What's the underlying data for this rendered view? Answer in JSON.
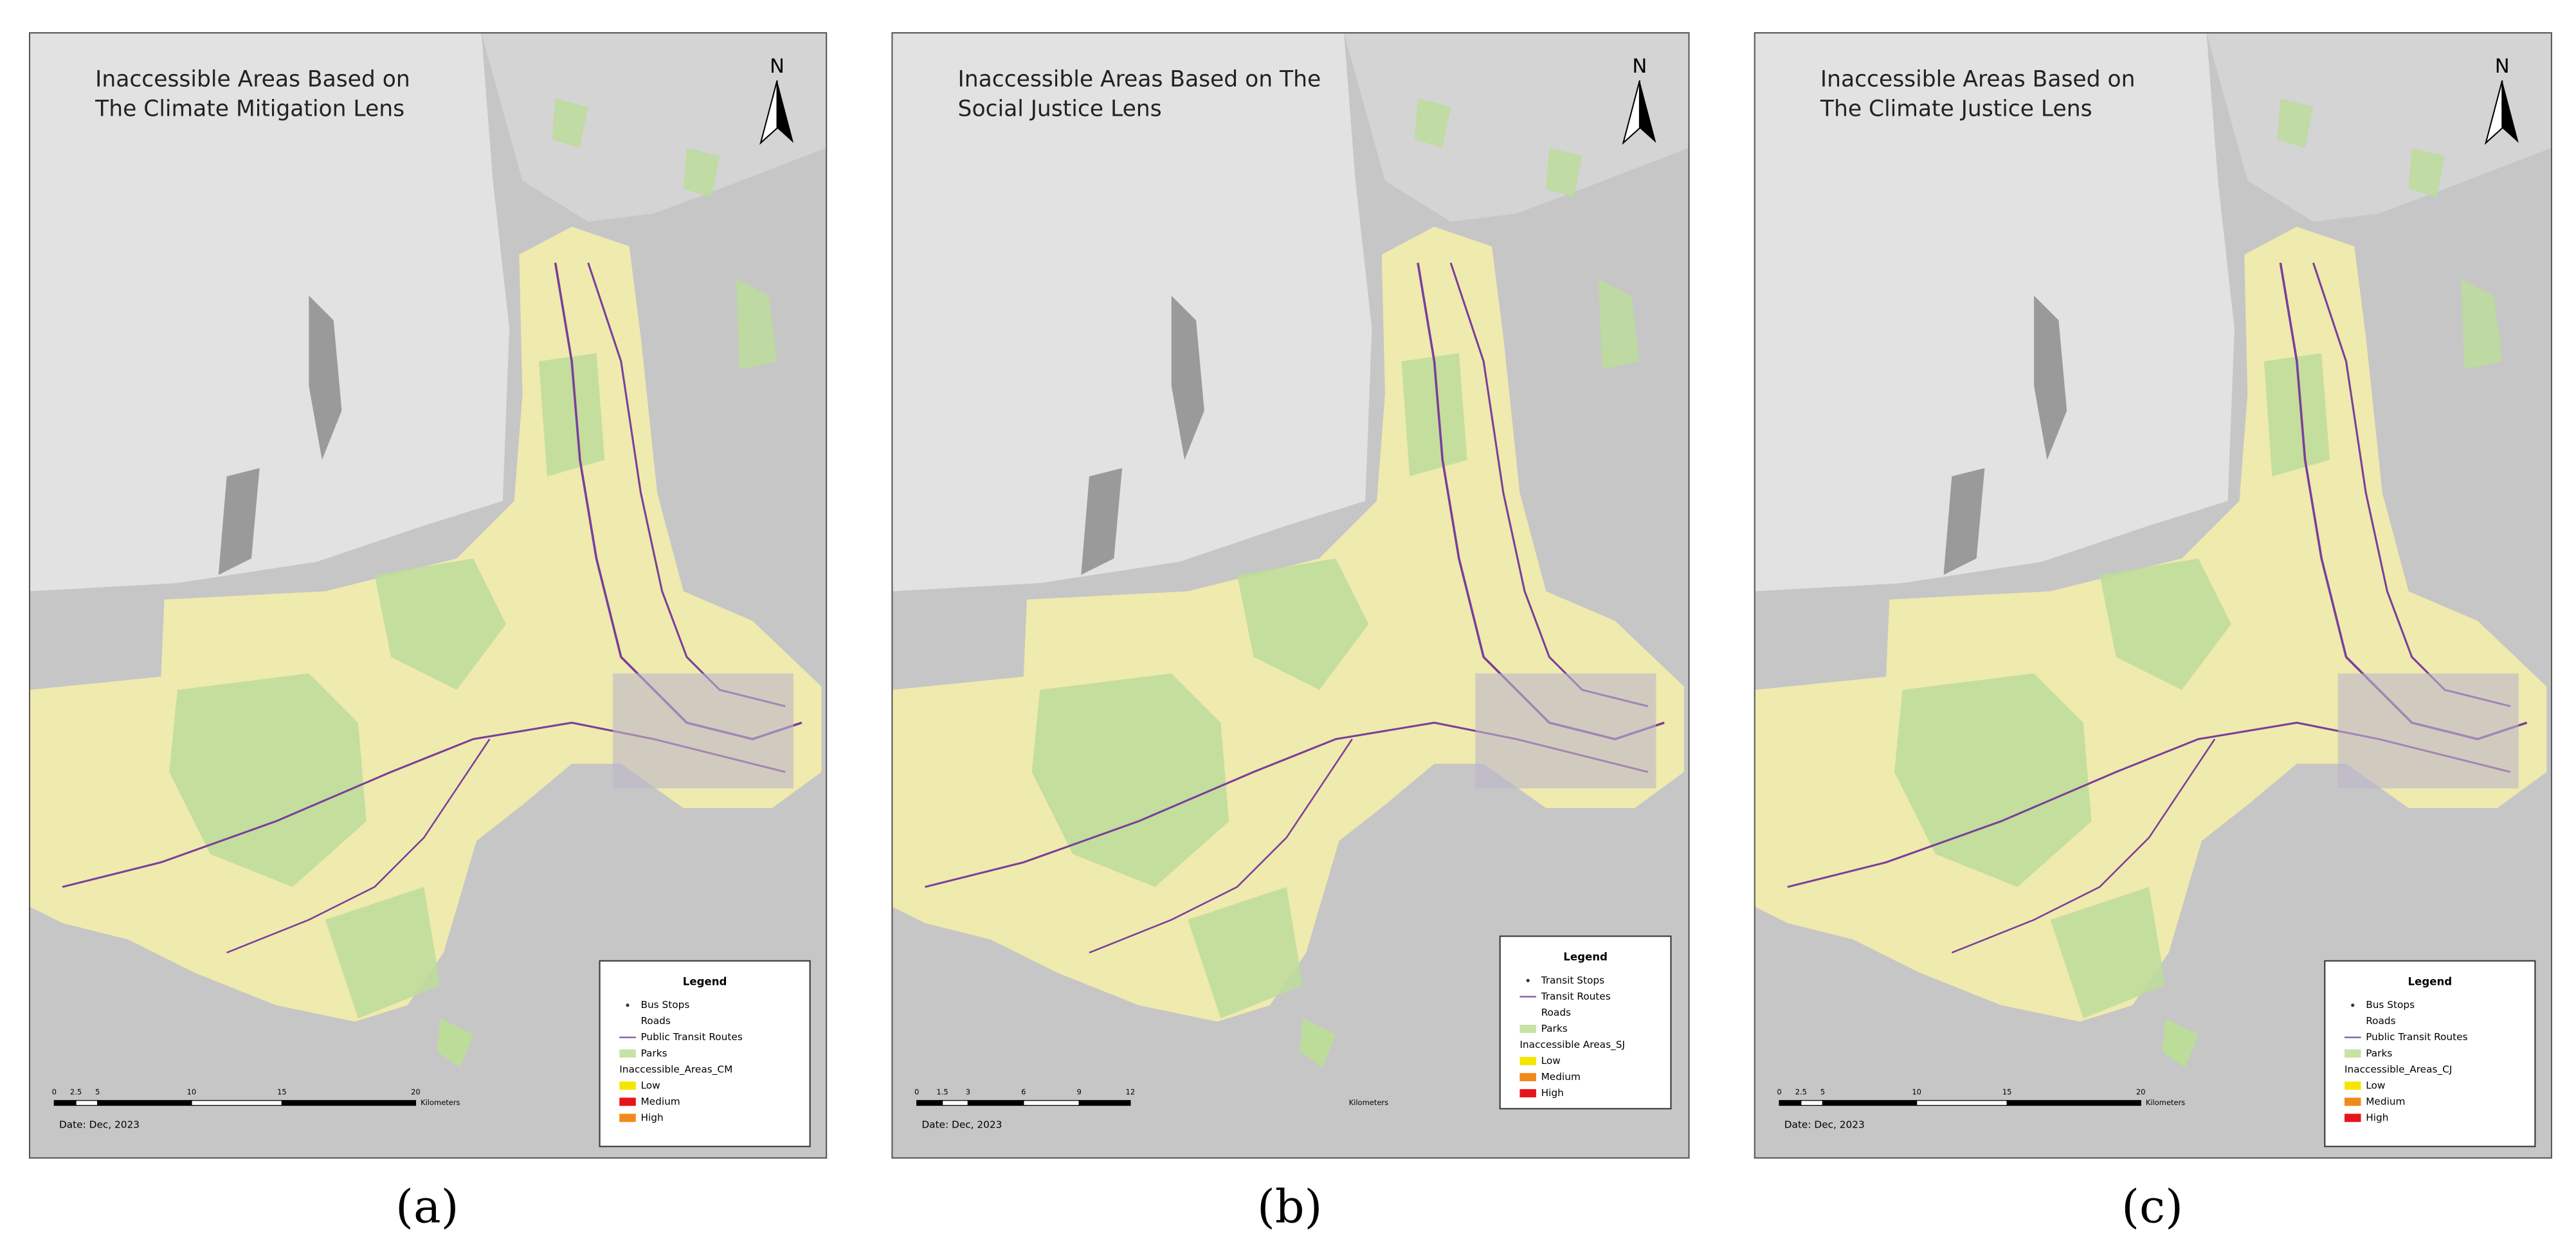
{
  "panels": [
    {
      "label": "(a)",
      "title_lines": [
        "Inaccessible Areas Based on",
        "The Climate Mitigation Lens"
      ],
      "north": "N",
      "legend": {
        "title": "Legend",
        "items": [
          "Bus Stops",
          "Roads",
          "Public Transit Routes",
          "Parks"
        ],
        "layer": "Inaccessible_Areas_CM",
        "classes": [
          {
            "name": "Low",
            "color": "#f5e600"
          },
          {
            "name": "Medium",
            "color": "#e8141c"
          },
          {
            "name": "High",
            "color": "#f08a1c"
          }
        ]
      },
      "scale": {
        "ticks": [
          "0",
          "2.5",
          "5",
          "10",
          "15",
          "20"
        ],
        "unit": "Kilometers"
      },
      "date": "Date: Dec, 2023"
    },
    {
      "label": "(b)",
      "title_lines": [
        "Inaccessible Areas Based on The",
        "Social Justice Lens"
      ],
      "north": "N",
      "legend": {
        "title": "Legend",
        "items": [
          "Transit Stops",
          "Transit Routes",
          "Roads",
          "Parks"
        ],
        "layer": "Inaccessible Areas_SJ",
        "classes": [
          {
            "name": "Low",
            "color": "#f5e600"
          },
          {
            "name": "Medium",
            "color": "#f08a1c"
          },
          {
            "name": "High",
            "color": "#e8141c"
          }
        ]
      },
      "scale": {
        "ticks": [
          "0",
          "1.5",
          "3",
          "6",
          "9",
          "12"
        ],
        "unit": "Kilometers"
      },
      "date": "Date: Dec, 2023"
    },
    {
      "label": "(c)",
      "title_lines": [
        "Inaccessible Areas Based on",
        "The Climate Justice Lens"
      ],
      "north": "N",
      "legend": {
        "title": "Legend",
        "items": [
          "Bus Stops",
          "Roads",
          "Public Transit Routes",
          "Parks"
        ],
        "layer": "Inaccessible_Areas_CJ",
        "classes": [
          {
            "name": "Low",
            "color": "#f5e600"
          },
          {
            "name": "Medium",
            "color": "#f08a1c"
          },
          {
            "name": "High",
            "color": "#e8141c"
          }
        ]
      },
      "scale": {
        "ticks": [
          "0",
          "2.5",
          "5",
          "10",
          "15",
          "20"
        ],
        "unit": "Kilometers"
      },
      "date": "Date: Dec, 2023"
    }
  ]
}
